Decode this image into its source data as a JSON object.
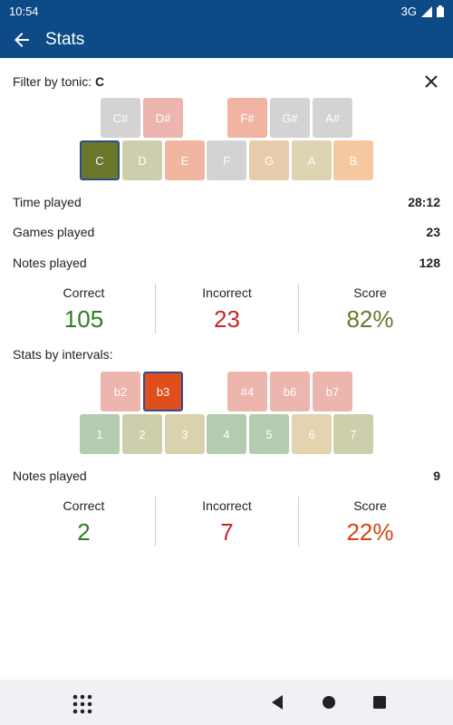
{
  "status_bar": {
    "time": "10:54",
    "network": "3G"
  },
  "app_bar": {
    "title": "Stats"
  },
  "filter": {
    "label": "Filter by tonic:",
    "value": "C",
    "sharps": [
      {
        "label": "C#",
        "color": "#d3d3d3"
      },
      {
        "label": "D#",
        "color": "#ecb5ad"
      },
      {
        "label": "F#",
        "color": "#f1b4a2"
      },
      {
        "label": "G#",
        "color": "#d3d3d3"
      },
      {
        "label": "A#",
        "color": "#d3d3d3"
      }
    ],
    "naturals": [
      {
        "label": "C",
        "color": "#6b772b",
        "selected": true
      },
      {
        "label": "D",
        "color": "#cdcfac",
        "selected": false
      },
      {
        "label": "E",
        "color": "#f1b6a0",
        "selected": false
      },
      {
        "label": "F",
        "color": "#d3d3d3",
        "selected": false
      },
      {
        "label": "G",
        "color": "#e6ccab",
        "selected": false
      },
      {
        "label": "A",
        "color": "#ded4b1",
        "selected": false
      },
      {
        "label": "B",
        "color": "#f5c8a2",
        "selected": false
      }
    ]
  },
  "summary": {
    "time_played_label": "Time played",
    "time_played": "28:12",
    "games_played_label": "Games played",
    "games_played": "23",
    "notes_played_label": "Notes played",
    "notes_played": "128"
  },
  "totals": {
    "correct_label": "Correct",
    "correct": "105",
    "incorrect_label": "Incorrect",
    "incorrect": "23",
    "score_label": "Score",
    "score": "82%"
  },
  "intervals": {
    "label": "Stats by intervals:",
    "altered": [
      {
        "label": "b2",
        "color": "#ecb5ad",
        "selected": false
      },
      {
        "label": "b3",
        "color": "#e14e1d",
        "selected": true
      },
      {
        "label": "#4",
        "color": "#ecb5ad",
        "selected": false
      },
      {
        "label": "b6",
        "color": "#ecb5ad",
        "selected": false
      },
      {
        "label": "b7",
        "color": "#ecb5ad",
        "selected": false
      }
    ],
    "diatonic": [
      {
        "label": "1",
        "color": "#b3ccaf"
      },
      {
        "label": "2",
        "color": "#cdcfac"
      },
      {
        "label": "3",
        "color": "#d8d2ad"
      },
      {
        "label": "4",
        "color": "#b3ccaf"
      },
      {
        "label": "5",
        "color": "#b3ccaf"
      },
      {
        "label": "6",
        "color": "#e3d3ae"
      },
      {
        "label": "7",
        "color": "#cdcfac"
      }
    ]
  },
  "interval_stats": {
    "notes_played_label": "Notes played",
    "notes_played": "9",
    "correct_label": "Correct",
    "correct": "2",
    "incorrect_label": "Incorrect",
    "incorrect": "7",
    "score_label": "Score",
    "score": "22%"
  },
  "colors": {
    "correct": "#2e7d1f",
    "incorrect": "#c62828",
    "score_good": "#6b772b",
    "score_bad": "#d84315"
  }
}
